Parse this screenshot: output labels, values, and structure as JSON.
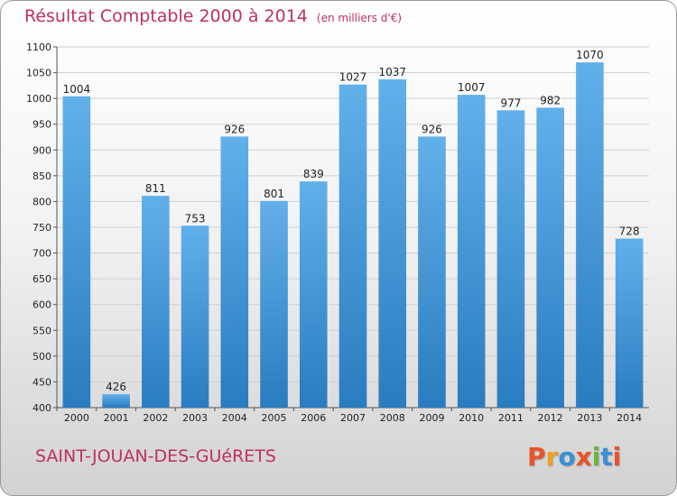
{
  "header": {
    "title": "Résultat Comptable 2000 à 2014",
    "subtitle": "(en milliers d'€)"
  },
  "footer": {
    "commune": "SAINT-JOUAN-DES-GUéRETS",
    "logo_text": "Proxiti",
    "logo_colors": [
      "#e8542a",
      "#f0a021",
      "#3b8fd6",
      "#e8542a",
      "#6cb33f",
      "#3b8fd6",
      "#e8542a"
    ]
  },
  "colors": {
    "title": "#c0305e",
    "bar_light": "#62b0ea",
    "bar_dark": "#2a7cc0",
    "grid": "#cfcfcf"
  },
  "chart_data": {
    "type": "bar",
    "title": "Résultat Comptable 2000 à 2014",
    "subtitle": "(en milliers d'€)",
    "xlabel": "",
    "ylabel": "",
    "categories": [
      "2000",
      "2001",
      "2002",
      "2003",
      "2004",
      "2005",
      "2006",
      "2007",
      "2008",
      "2009",
      "2010",
      "2011",
      "2012",
      "2013",
      "2014"
    ],
    "values": [
      1004,
      426,
      811,
      753,
      926,
      801,
      839,
      1027,
      1037,
      926,
      1007,
      977,
      982,
      1070,
      728
    ],
    "ylim": [
      400,
      1100
    ],
    "yticks": [
      400,
      450,
      500,
      550,
      600,
      650,
      700,
      750,
      800,
      850,
      900,
      950,
      1000,
      1050,
      1100
    ],
    "grid": true,
    "legend": "none"
  }
}
